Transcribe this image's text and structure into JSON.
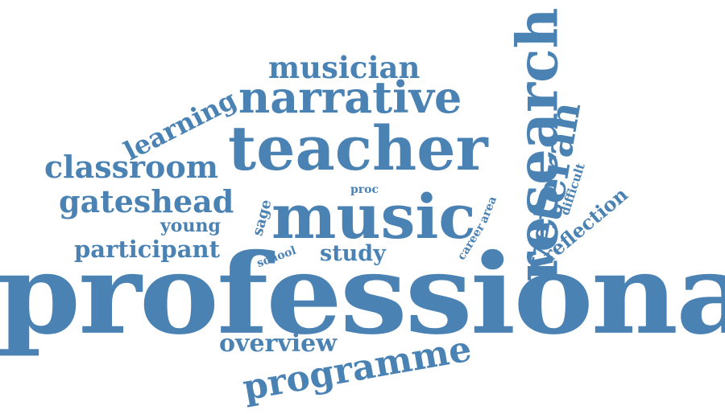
{
  "color": "#4a82b4",
  "words": {
    "professional": "professional",
    "teacher": "teacher",
    "music": "music",
    "research": "research",
    "narrative": "narrative",
    "veteran": "veteran",
    "programme": "programme",
    "musician": "musician",
    "classroom": "classroom",
    "gateshead": "gateshead",
    "learning": "learning",
    "participant": "participant",
    "overview": "overview",
    "study": "study",
    "young": "young",
    "reflection": "reflection",
    "sage": "sage",
    "school": "school",
    "proc": "proc",
    "area": "area",
    "career": "career",
    "difficult": "difficult"
  }
}
